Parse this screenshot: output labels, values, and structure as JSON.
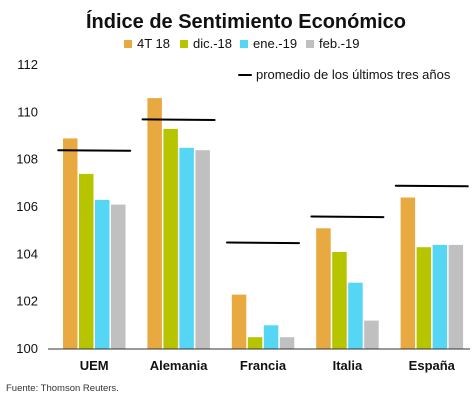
{
  "chart_data": {
    "type": "bar",
    "title": "Índice de Sentimiento Económico",
    "categories": [
      "UEM",
      "Alemania",
      "Francia",
      "Italia",
      "España"
    ],
    "series": [
      {
        "name": "4T 18",
        "color": "#E8A940",
        "values": [
          108.9,
          110.6,
          102.3,
          105.1,
          106.4
        ]
      },
      {
        "name": "dic.-18",
        "color": "#B7C400",
        "values": [
          107.4,
          109.3,
          100.5,
          104.1,
          104.3
        ]
      },
      {
        "name": "ene.-19",
        "color": "#55D6F5",
        "values": [
          106.3,
          108.5,
          101.0,
          102.8,
          104.4
        ]
      },
      {
        "name": "feb.-19",
        "color": "#C0C0C0",
        "values": [
          106.1,
          108.4,
          100.5,
          101.2,
          104.4
        ]
      }
    ],
    "averages": {
      "name": "promedio de los últimos tres años",
      "values": [
        108.4,
        109.7,
        104.5,
        105.6,
        106.9
      ]
    },
    "ylim": [
      100,
      112
    ],
    "yticks": [
      100,
      102,
      104,
      106,
      108,
      110,
      112
    ],
    "xlabel": "",
    "ylabel": "",
    "legend_position": "top",
    "grid": false
  },
  "source_note": "Fuente: Thomson Reuters."
}
